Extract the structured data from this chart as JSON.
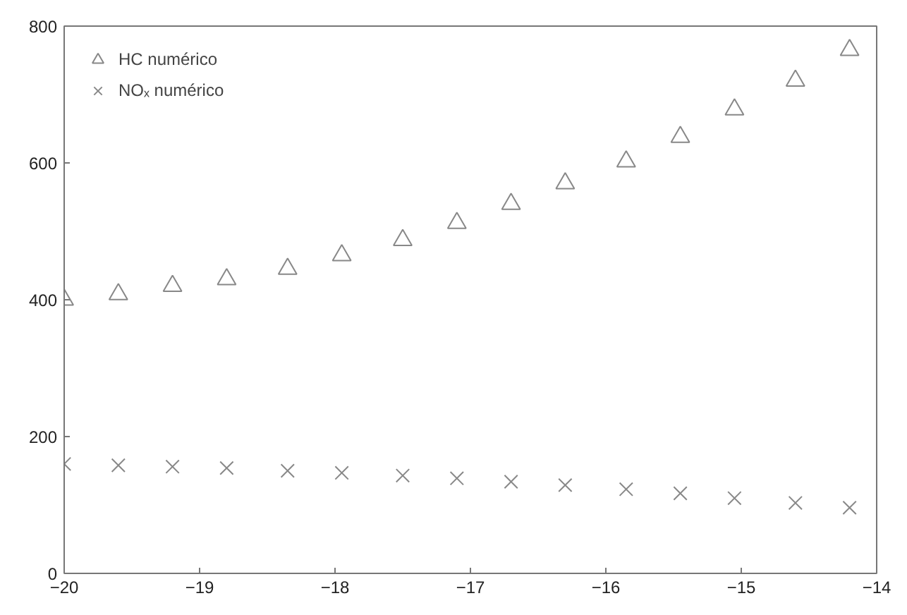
{
  "chart_data": {
    "type": "scatter",
    "x": [
      -20,
      -19.6,
      -19.2,
      -18.8,
      -18.35,
      -17.95,
      -17.5,
      -17.1,
      -16.7,
      -16.3,
      -15.85,
      -15.45,
      -15.05,
      -14.6,
      -14.2
    ],
    "series": [
      {
        "name": "HC numérico",
        "color": "#888888",
        "marker": "triangle",
        "values": [
          400,
          408,
          420,
          430,
          445,
          465,
          487,
          512,
          540,
          570,
          602,
          638,
          678,
          720,
          765
        ]
      },
      {
        "name": "NOₓ numérico",
        "color": "#888888",
        "marker": "cross",
        "values": [
          160,
          158,
          156,
          154,
          150,
          147,
          143,
          139,
          134,
          129,
          123,
          117,
          110,
          103,
          96
        ]
      }
    ],
    "xlim": [
      -20,
      -14
    ],
    "xticks": [
      -20,
      -19,
      -18,
      -17,
      -16,
      -15,
      -14
    ],
    "ylim": [
      0,
      800
    ],
    "yticks": [
      0,
      200,
      400,
      600,
      800
    ],
    "grid": false,
    "legend": "top left"
  }
}
